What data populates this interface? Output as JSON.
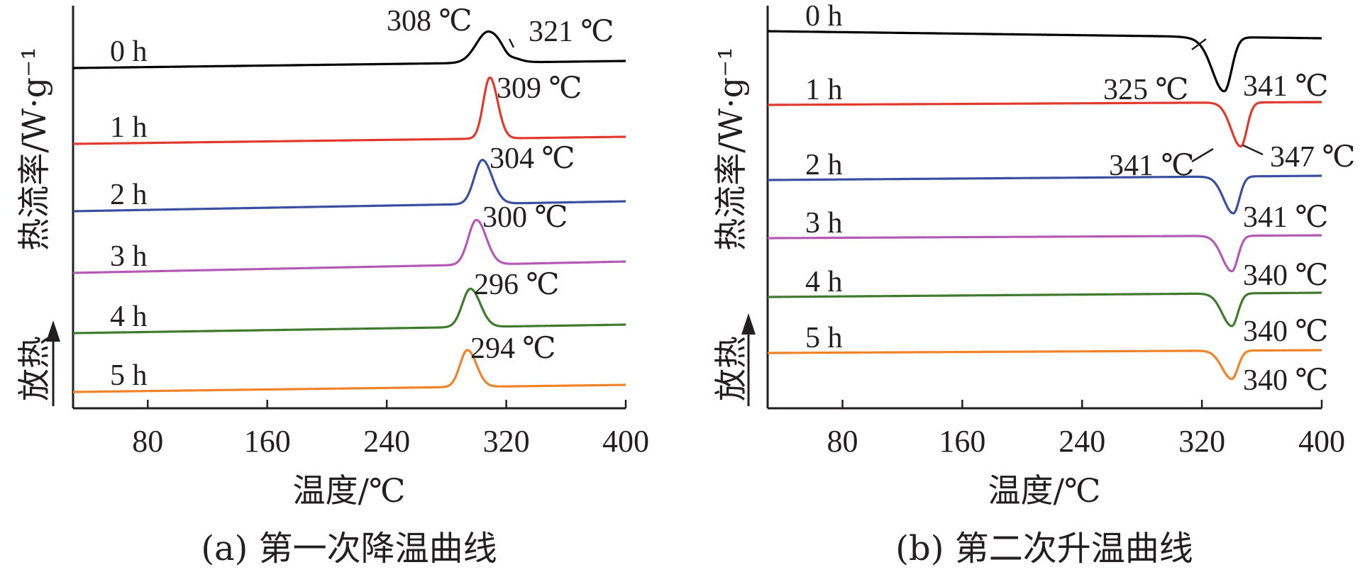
{
  "chart_data": [
    {
      "type": "line",
      "caption": "(a) 第一次降温曲线",
      "xlabel": "温度/℃",
      "ylabel": "热流率/W·g⁻¹",
      "exo_label": "放热",
      "xlim": [
        30,
        400
      ],
      "xticks": [
        80,
        160,
        240,
        320,
        400
      ],
      "y_ticks_shown": false,
      "series": [
        {
          "name": "0 h",
          "color": "#000000",
          "peaks": [
            308,
            321
          ],
          "peak_labels": [
            "308 ℃",
            "321 ℃"
          ]
        },
        {
          "name": "1 h",
          "color": "#e03a2e",
          "peaks": [
            309
          ],
          "peak_labels": [
            "309 ℃"
          ]
        },
        {
          "name": "2 h",
          "color": "#3a4fa0",
          "peaks": [
            304
          ],
          "peak_labels": [
            "304 ℃"
          ]
        },
        {
          "name": "3 h",
          "color": "#b45ab4",
          "peaks": [
            300
          ],
          "peak_labels": [
            "300 ℃"
          ]
        },
        {
          "name": "4 h",
          "color": "#3f7a2e",
          "peaks": [
            296
          ],
          "peak_labels": [
            "296 ℃"
          ]
        },
        {
          "name": "5 h",
          "color": "#f0822a",
          "peaks": [
            294
          ],
          "peak_labels": [
            "294 ℃"
          ]
        }
      ]
    },
    {
      "type": "line",
      "caption": "(b) 第二次升温曲线",
      "xlabel": "温度/℃",
      "ylabel": "热流率/W·g⁻¹",
      "exo_label": "放热",
      "xlim": [
        30,
        400
      ],
      "xticks": [
        80,
        160,
        240,
        320,
        400
      ],
      "y_ticks_shown": false,
      "series": [
        {
          "name": "0 h",
          "color": "#000000",
          "peaks": [
            325,
            341
          ],
          "peak_labels": [
            "325 ℃",
            "341 ℃"
          ]
        },
        {
          "name": "1 h",
          "color": "#e03a2e",
          "peaks": [
            341,
            347
          ],
          "peak_labels": [
            "341 ℃",
            "347 ℃"
          ]
        },
        {
          "name": "2 h",
          "color": "#3a4fa0",
          "peaks": [
            341
          ],
          "peak_labels": [
            "341 ℃"
          ]
        },
        {
          "name": "3 h",
          "color": "#b45ab4",
          "peaks": [
            340
          ],
          "peak_labels": [
            "340 ℃"
          ]
        },
        {
          "name": "4 h",
          "color": "#3f7a2e",
          "peaks": [
            340
          ],
          "peak_labels": [
            "340 ℃"
          ]
        },
        {
          "name": "5 h",
          "color": "#f0822a",
          "peaks": [
            340
          ],
          "peak_labels": [
            "340 ℃"
          ]
        }
      ]
    }
  ]
}
